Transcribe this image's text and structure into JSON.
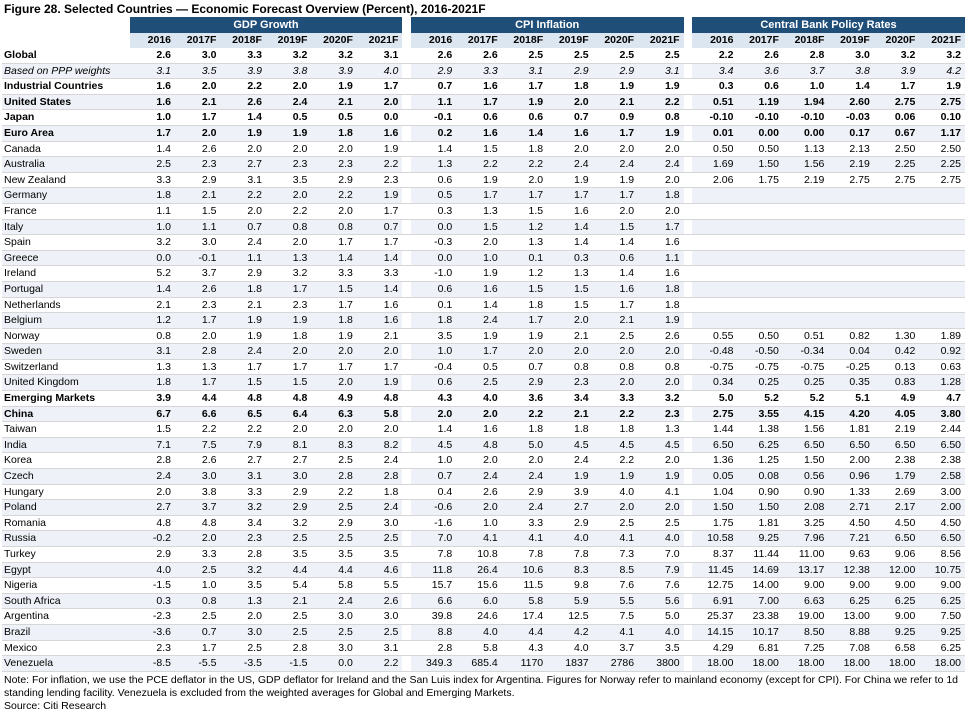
{
  "title": "Figure 28. Selected Countries — Economic Forecast Overview (Percent), 2016-2021F",
  "groups": [
    "GDP Growth",
    "CPI Inflation",
    "Central Bank Policy Rates"
  ],
  "years": [
    "2016",
    "2017F",
    "2018F",
    "2019F",
    "2020F",
    "2021F"
  ],
  "rows": [
    {
      "name": "Global",
      "style": "b",
      "gdp": [
        "2.6",
        "3.0",
        "3.3",
        "3.2",
        "3.2",
        "3.1"
      ],
      "cpi": [
        "2.6",
        "2.6",
        "2.5",
        "2.5",
        "2.5",
        "2.5"
      ],
      "rate": [
        "2.2",
        "2.6",
        "2.8",
        "3.0",
        "3.2",
        "3.2"
      ]
    },
    {
      "name": "Based on PPP weights",
      "style": "i",
      "gdp": [
        "3.1",
        "3.5",
        "3.9",
        "3.8",
        "3.9",
        "4.0"
      ],
      "cpi": [
        "2.9",
        "3.3",
        "3.1",
        "2.9",
        "2.9",
        "3.1"
      ],
      "rate": [
        "3.4",
        "3.6",
        "3.7",
        "3.8",
        "3.9",
        "4.2"
      ]
    },
    {
      "name": "Industrial Countries",
      "style": "b",
      "gdp": [
        "1.6",
        "2.0",
        "2.2",
        "2.0",
        "1.9",
        "1.7"
      ],
      "cpi": [
        "0.7",
        "1.6",
        "1.7",
        "1.8",
        "1.9",
        "1.9"
      ],
      "rate": [
        "0.3",
        "0.6",
        "1.0",
        "1.4",
        "1.7",
        "1.9"
      ]
    },
    {
      "name": "United States",
      "style": "b",
      "gdp": [
        "1.6",
        "2.1",
        "2.6",
        "2.4",
        "2.1",
        "2.0"
      ],
      "cpi": [
        "1.1",
        "1.7",
        "1.9",
        "2.0",
        "2.1",
        "2.2"
      ],
      "rate": [
        "0.51",
        "1.19",
        "1.94",
        "2.60",
        "2.75",
        "2.75"
      ]
    },
    {
      "name": "Japan",
      "style": "b",
      "gdp": [
        "1.0",
        "1.7",
        "1.4",
        "0.5",
        "0.5",
        "0.0"
      ],
      "cpi": [
        "-0.1",
        "0.6",
        "0.6",
        "0.7",
        "0.9",
        "0.8"
      ],
      "rate": [
        "-0.10",
        "-0.10",
        "-0.10",
        "-0.03",
        "0.06",
        "0.10"
      ]
    },
    {
      "name": "Euro Area",
      "style": "b",
      "gdp": [
        "1.7",
        "2.0",
        "1.9",
        "1.9",
        "1.8",
        "1.6"
      ],
      "cpi": [
        "0.2",
        "1.6",
        "1.4",
        "1.6",
        "1.7",
        "1.9"
      ],
      "rate": [
        "0.01",
        "0.00",
        "0.00",
        "0.17",
        "0.67",
        "1.17"
      ]
    },
    {
      "name": "Canada",
      "style": "",
      "gdp": [
        "1.4",
        "2.6",
        "2.0",
        "2.0",
        "2.0",
        "1.9"
      ],
      "cpi": [
        "1.4",
        "1.5",
        "1.8",
        "2.0",
        "2.0",
        "2.0"
      ],
      "rate": [
        "0.50",
        "0.50",
        "1.13",
        "2.13",
        "2.50",
        "2.50"
      ]
    },
    {
      "name": "Australia",
      "style": "",
      "gdp": [
        "2.5",
        "2.3",
        "2.7",
        "2.3",
        "2.3",
        "2.2"
      ],
      "cpi": [
        "1.3",
        "2.2",
        "2.2",
        "2.4",
        "2.4",
        "2.4"
      ],
      "rate": [
        "1.69",
        "1.50",
        "1.56",
        "2.19",
        "2.25",
        "2.25"
      ]
    },
    {
      "name": "New Zealand",
      "style": "",
      "gdp": [
        "3.3",
        "2.9",
        "3.1",
        "3.5",
        "2.9",
        "2.3"
      ],
      "cpi": [
        "0.6",
        "1.9",
        "2.0",
        "1.9",
        "1.9",
        "2.0"
      ],
      "rate": [
        "2.06",
        "1.75",
        "2.19",
        "2.75",
        "2.75",
        "2.75"
      ]
    },
    {
      "name": "Germany",
      "style": "",
      "gdp": [
        "1.8",
        "2.1",
        "2.2",
        "2.0",
        "2.2",
        "1.9"
      ],
      "cpi": [
        "0.5",
        "1.7",
        "1.7",
        "1.7",
        "1.7",
        "1.8"
      ],
      "rate": [
        "",
        "",
        "",
        "",
        "",
        ""
      ]
    },
    {
      "name": "France",
      "style": "",
      "gdp": [
        "1.1",
        "1.5",
        "2.0",
        "2.2",
        "2.0",
        "1.7"
      ],
      "cpi": [
        "0.3",
        "1.3",
        "1.5",
        "1.6",
        "2.0",
        "2.0"
      ],
      "rate": [
        "",
        "",
        "",
        "",
        "",
        ""
      ]
    },
    {
      "name": "Italy",
      "style": "",
      "gdp": [
        "1.0",
        "1.1",
        "0.7",
        "0.8",
        "0.8",
        "0.7"
      ],
      "cpi": [
        "0.0",
        "1.5",
        "1.2",
        "1.4",
        "1.5",
        "1.7"
      ],
      "rate": [
        "",
        "",
        "",
        "",
        "",
        ""
      ]
    },
    {
      "name": "Spain",
      "style": "",
      "gdp": [
        "3.2",
        "3.0",
        "2.4",
        "2.0",
        "1.7",
        "1.7"
      ],
      "cpi": [
        "-0.3",
        "2.0",
        "1.3",
        "1.4",
        "1.4",
        "1.6"
      ],
      "rate": [
        "",
        "",
        "",
        "",
        "",
        ""
      ]
    },
    {
      "name": "Greece",
      "style": "",
      "gdp": [
        "0.0",
        "-0.1",
        "1.1",
        "1.3",
        "1.4",
        "1.4"
      ],
      "cpi": [
        "0.0",
        "1.0",
        "0.1",
        "0.3",
        "0.6",
        "1.1"
      ],
      "rate": [
        "",
        "",
        "",
        "",
        "",
        ""
      ]
    },
    {
      "name": "Ireland",
      "style": "",
      "gdp": [
        "5.2",
        "3.7",
        "2.9",
        "3.2",
        "3.3",
        "3.3"
      ],
      "cpi": [
        "-1.0",
        "1.9",
        "1.2",
        "1.3",
        "1.4",
        "1.6"
      ],
      "rate": [
        "",
        "",
        "",
        "",
        "",
        ""
      ]
    },
    {
      "name": "Portugal",
      "style": "",
      "gdp": [
        "1.4",
        "2.6",
        "1.8",
        "1.7",
        "1.5",
        "1.4"
      ],
      "cpi": [
        "0.6",
        "1.6",
        "1.5",
        "1.5",
        "1.6",
        "1.8"
      ],
      "rate": [
        "",
        "",
        "",
        "",
        "",
        ""
      ]
    },
    {
      "name": "Netherlands",
      "style": "",
      "gdp": [
        "2.1",
        "2.3",
        "2.1",
        "2.3",
        "1.7",
        "1.6"
      ],
      "cpi": [
        "0.1",
        "1.4",
        "1.8",
        "1.5",
        "1.7",
        "1.8"
      ],
      "rate": [
        "",
        "",
        "",
        "",
        "",
        ""
      ]
    },
    {
      "name": "Belgium",
      "style": "",
      "gdp": [
        "1.2",
        "1.7",
        "1.9",
        "1.9",
        "1.8",
        "1.6"
      ],
      "cpi": [
        "1.8",
        "2.4",
        "1.7",
        "2.0",
        "2.1",
        "1.9"
      ],
      "rate": [
        "",
        "",
        "",
        "",
        "",
        ""
      ]
    },
    {
      "name": "Norway",
      "style": "",
      "gdp": [
        "0.8",
        "2.0",
        "1.9",
        "1.8",
        "1.9",
        "2.1"
      ],
      "cpi": [
        "3.5",
        "1.9",
        "1.9",
        "2.1",
        "2.5",
        "2.6"
      ],
      "rate": [
        "0.55",
        "0.50",
        "0.51",
        "0.82",
        "1.30",
        "1.89"
      ]
    },
    {
      "name": "Sweden",
      "style": "",
      "gdp": [
        "3.1",
        "2.8",
        "2.4",
        "2.0",
        "2.0",
        "2.0"
      ],
      "cpi": [
        "1.0",
        "1.7",
        "2.0",
        "2.0",
        "2.0",
        "2.0"
      ],
      "rate": [
        "-0.48",
        "-0.50",
        "-0.34",
        "0.04",
        "0.42",
        "0.92"
      ]
    },
    {
      "name": "Switzerland",
      "style": "",
      "gdp": [
        "1.3",
        "1.3",
        "1.7",
        "1.7",
        "1.7",
        "1.7"
      ],
      "cpi": [
        "-0.4",
        "0.5",
        "0.7",
        "0.8",
        "0.8",
        "0.8"
      ],
      "rate": [
        "-0.75",
        "-0.75",
        "-0.75",
        "-0.25",
        "0.13",
        "0.63"
      ]
    },
    {
      "name": "United Kingdom",
      "style": "",
      "gdp": [
        "1.8",
        "1.7",
        "1.5",
        "1.5",
        "2.0",
        "1.9"
      ],
      "cpi": [
        "0.6",
        "2.5",
        "2.9",
        "2.3",
        "2.0",
        "2.0"
      ],
      "rate": [
        "0.34",
        "0.25",
        "0.25",
        "0.35",
        "0.83",
        "1.28"
      ]
    },
    {
      "name": "Emerging Markets",
      "style": "b",
      "gdp": [
        "3.9",
        "4.4",
        "4.8",
        "4.8",
        "4.9",
        "4.8"
      ],
      "cpi": [
        "4.3",
        "4.0",
        "3.6",
        "3.4",
        "3.3",
        "3.2"
      ],
      "rate": [
        "5.0",
        "5.2",
        "5.2",
        "5.1",
        "4.9",
        "4.7"
      ]
    },
    {
      "name": "China",
      "style": "b",
      "gdp": [
        "6.7",
        "6.6",
        "6.5",
        "6.4",
        "6.3",
        "5.8"
      ],
      "cpi": [
        "2.0",
        "2.0",
        "2.2",
        "2.1",
        "2.2",
        "2.3"
      ],
      "rate": [
        "2.75",
        "3.55",
        "4.15",
        "4.20",
        "4.05",
        "3.80"
      ]
    },
    {
      "name": "Taiwan",
      "style": "",
      "gdp": [
        "1.5",
        "2.2",
        "2.2",
        "2.0",
        "2.0",
        "2.0"
      ],
      "cpi": [
        "1.4",
        "1.6",
        "1.8",
        "1.8",
        "1.8",
        "1.3"
      ],
      "rate": [
        "1.44",
        "1.38",
        "1.56",
        "1.81",
        "2.19",
        "2.44"
      ]
    },
    {
      "name": "India",
      "style": "",
      "gdp": [
        "7.1",
        "7.5",
        "7.9",
        "8.1",
        "8.3",
        "8.2"
      ],
      "cpi": [
        "4.5",
        "4.8",
        "5.0",
        "4.5",
        "4.5",
        "4.5"
      ],
      "rate": [
        "6.50",
        "6.25",
        "6.50",
        "6.50",
        "6.50",
        "6.50"
      ]
    },
    {
      "name": "Korea",
      "style": "",
      "gdp": [
        "2.8",
        "2.6",
        "2.7",
        "2.7",
        "2.5",
        "2.4"
      ],
      "cpi": [
        "1.0",
        "2.0",
        "2.0",
        "2.4",
        "2.2",
        "2.0"
      ],
      "rate": [
        "1.36",
        "1.25",
        "1.50",
        "2.00",
        "2.38",
        "2.38"
      ]
    },
    {
      "name": "Czech",
      "style": "",
      "gdp": [
        "2.4",
        "3.0",
        "3.1",
        "3.0",
        "2.8",
        "2.8"
      ],
      "cpi": [
        "0.7",
        "2.4",
        "2.4",
        "1.9",
        "1.9",
        "1.9"
      ],
      "rate": [
        "0.05",
        "0.08",
        "0.56",
        "0.96",
        "1.79",
        "2.58"
      ]
    },
    {
      "name": "Hungary",
      "style": "",
      "gdp": [
        "2.0",
        "3.8",
        "3.3",
        "2.9",
        "2.2",
        "1.8"
      ],
      "cpi": [
        "0.4",
        "2.6",
        "2.9",
        "3.9",
        "4.0",
        "4.1"
      ],
      "rate": [
        "1.04",
        "0.90",
        "0.90",
        "1.33",
        "2.69",
        "3.00"
      ]
    },
    {
      "name": "Poland",
      "style": "",
      "gdp": [
        "2.7",
        "3.7",
        "3.2",
        "2.9",
        "2.5",
        "2.4"
      ],
      "cpi": [
        "-0.6",
        "2.0",
        "2.4",
        "2.7",
        "2.0",
        "2.0"
      ],
      "rate": [
        "1.50",
        "1.50",
        "2.08",
        "2.71",
        "2.17",
        "2.00"
      ]
    },
    {
      "name": "Romania",
      "style": "",
      "gdp": [
        "4.8",
        "4.8",
        "3.4",
        "3.2",
        "2.9",
        "3.0"
      ],
      "cpi": [
        "-1.6",
        "1.0",
        "3.3",
        "2.9",
        "2.5",
        "2.5"
      ],
      "rate": [
        "1.75",
        "1.81",
        "3.25",
        "4.50",
        "4.50",
        "4.50"
      ]
    },
    {
      "name": "Russia",
      "style": "",
      "gdp": [
        "-0.2",
        "2.0",
        "2.3",
        "2.5",
        "2.5",
        "2.5"
      ],
      "cpi": [
        "7.0",
        "4.1",
        "4.1",
        "4.0",
        "4.1",
        "4.0"
      ],
      "rate": [
        "10.58",
        "9.25",
        "7.96",
        "7.21",
        "6.50",
        "6.50"
      ]
    },
    {
      "name": "Turkey",
      "style": "",
      "gdp": [
        "2.9",
        "3.3",
        "2.8",
        "3.5",
        "3.5",
        "3.5"
      ],
      "cpi": [
        "7.8",
        "10.8",
        "7.8",
        "7.8",
        "7.3",
        "7.0"
      ],
      "rate": [
        "8.37",
        "11.44",
        "11.00",
        "9.63",
        "9.06",
        "8.56"
      ]
    },
    {
      "name": "Egypt",
      "style": "",
      "gdp": [
        "4.0",
        "2.5",
        "3.2",
        "4.4",
        "4.4",
        "4.6"
      ],
      "cpi": [
        "11.8",
        "26.4",
        "10.6",
        "8.3",
        "8.5",
        "7.9"
      ],
      "rate": [
        "11.45",
        "14.69",
        "13.17",
        "12.38",
        "12.00",
        "10.75"
      ]
    },
    {
      "name": "Nigeria",
      "style": "",
      "gdp": [
        "-1.5",
        "1.0",
        "3.5",
        "5.4",
        "5.8",
        "5.5"
      ],
      "cpi": [
        "15.7",
        "15.6",
        "11.5",
        "9.8",
        "7.6",
        "7.6"
      ],
      "rate": [
        "12.75",
        "14.00",
        "9.00",
        "9.00",
        "9.00",
        "9.00"
      ]
    },
    {
      "name": "South Africa",
      "style": "",
      "gdp": [
        "0.3",
        "0.8",
        "1.3",
        "2.1",
        "2.4",
        "2.6"
      ],
      "cpi": [
        "6.6",
        "6.0",
        "5.8",
        "5.9",
        "5.5",
        "5.6"
      ],
      "rate": [
        "6.91",
        "7.00",
        "6.63",
        "6.25",
        "6.25",
        "6.25"
      ]
    },
    {
      "name": "Argentina",
      "style": "",
      "gdp": [
        "-2.3",
        "2.5",
        "2.0",
        "2.5",
        "3.0",
        "3.0"
      ],
      "cpi": [
        "39.8",
        "24.6",
        "17.4",
        "12.5",
        "7.5",
        "5.0"
      ],
      "rate": [
        "25.37",
        "23.38",
        "19.00",
        "13.00",
        "9.00",
        "7.50"
      ]
    },
    {
      "name": "Brazil",
      "style": "",
      "gdp": [
        "-3.6",
        "0.7",
        "3.0",
        "2.5",
        "2.5",
        "2.5"
      ],
      "cpi": [
        "8.8",
        "4.0",
        "4.4",
        "4.2",
        "4.1",
        "4.0"
      ],
      "rate": [
        "14.15",
        "10.17",
        "8.50",
        "8.88",
        "9.25",
        "9.25"
      ]
    },
    {
      "name": "Mexico",
      "style": "",
      "gdp": [
        "2.3",
        "1.7",
        "2.5",
        "2.8",
        "3.0",
        "3.1"
      ],
      "cpi": [
        "2.8",
        "5.8",
        "4.3",
        "4.0",
        "3.7",
        "3.5"
      ],
      "rate": [
        "4.29",
        "6.81",
        "7.25",
        "7.08",
        "6.58",
        "6.25"
      ]
    },
    {
      "name": "Venezuela",
      "style": "",
      "gdp": [
        "-8.5",
        "-5.5",
        "-3.5",
        "-1.5",
        "0.0",
        "2.2"
      ],
      "cpi": [
        "349.3",
        "685.4",
        "1170",
        "1837",
        "2786",
        "3800"
      ],
      "rate": [
        "18.00",
        "18.00",
        "18.00",
        "18.00",
        "18.00",
        "18.00"
      ]
    }
  ],
  "note": "Note: For inflation, we use the PCE deflator in the US, GDP deflator for Ireland and the San Luis index for Argentina. Figures for Norway refer to mainland economy (except for CPI). For China we refer to 1d standing lending facility. Venezuela is excluded from the weighted averages for Global and Emerging Markets.",
  "source": "Source: Citi Research"
}
